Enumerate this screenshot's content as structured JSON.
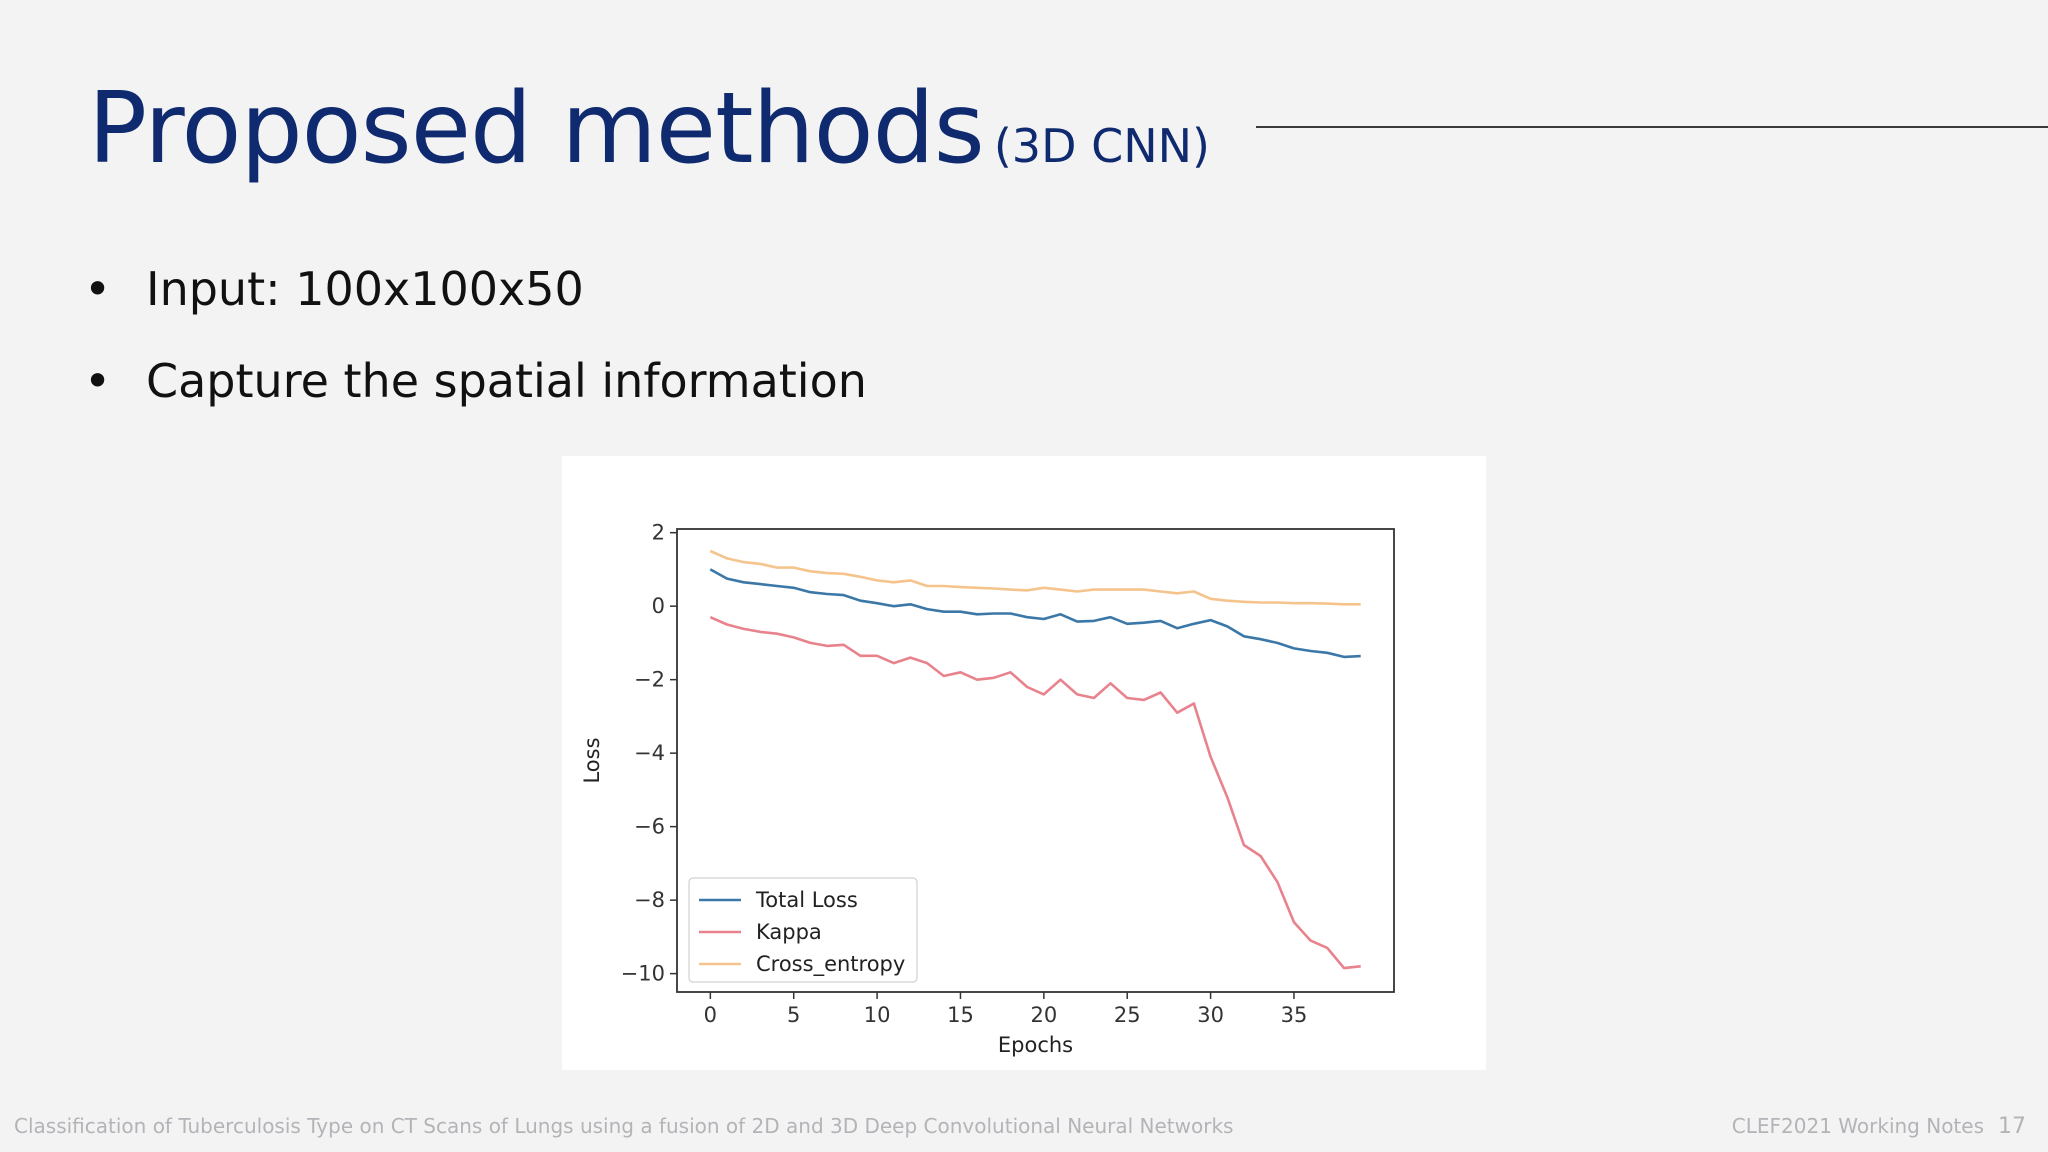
{
  "slide": {
    "title": "Proposed methods",
    "title_suffix": "(3D CNN)",
    "bullets": [
      {
        "marker": "•",
        "text": "Input: 100x100x50"
      },
      {
        "marker": "•",
        "text": "Capture the spatial information"
      }
    ],
    "footer_left": "Classification of Tuberculosis Type on CT Scans of Lungs using a fusion of 2D and 3D Deep Convolutional Neural Networks",
    "footer_right": "CLEF2021 Working Notes",
    "page_number": "17"
  },
  "chart_data": {
    "type": "line",
    "title": "",
    "xlabel": "Epochs",
    "ylabel": "Loss",
    "xlim": [
      -2,
      41
    ],
    "ylim": [
      -10.5,
      2.1
    ],
    "xticks": [
      0,
      5,
      10,
      15,
      20,
      25,
      30,
      35
    ],
    "yticks": [
      2,
      0,
      -2,
      -4,
      -6,
      -8,
      -10
    ],
    "ytick_labels": [
      "2",
      "0",
      "−2",
      "−4",
      "−6",
      "−8",
      "−10"
    ],
    "legend_position": "lower-left",
    "x": [
      0,
      1,
      2,
      3,
      4,
      5,
      6,
      7,
      8,
      9,
      10,
      11,
      12,
      13,
      14,
      15,
      16,
      17,
      18,
      19,
      20,
      21,
      22,
      23,
      24,
      25,
      26,
      27,
      28,
      29,
      30,
      31,
      32,
      33,
      34,
      35,
      36,
      37,
      38,
      39
    ],
    "series": [
      {
        "name": "Total Loss",
        "color": "#3b78a8",
        "values": [
          1.0,
          0.75,
          0.65,
          0.6,
          0.55,
          0.5,
          0.38,
          0.33,
          0.3,
          0.15,
          0.08,
          0.0,
          0.05,
          -0.08,
          -0.15,
          -0.15,
          -0.22,
          -0.2,
          -0.2,
          -0.3,
          -0.35,
          -0.22,
          -0.42,
          -0.4,
          -0.3,
          -0.48,
          -0.45,
          -0.4,
          -0.6,
          -0.48,
          -0.38,
          -0.55,
          -0.82,
          -0.9,
          -1.0,
          -1.15,
          -1.22,
          -1.27,
          -1.38,
          -1.36
        ]
      },
      {
        "name": "Kappa",
        "color": "#e8828c",
        "values": [
          -0.3,
          -0.5,
          -0.62,
          -0.7,
          -0.75,
          -0.85,
          -1.0,
          -1.08,
          -1.05,
          -1.35,
          -1.35,
          -1.55,
          -1.4,
          -1.55,
          -1.9,
          -1.8,
          -2.0,
          -1.95,
          -1.8,
          -2.2,
          -2.4,
          -2.0,
          -2.4,
          -2.5,
          -2.1,
          -2.5,
          -2.55,
          -2.35,
          -2.9,
          -2.65,
          -4.1,
          -5.2,
          -6.5,
          -6.8,
          -7.5,
          -8.6,
          -9.1,
          -9.3,
          -9.85,
          -9.8
        ]
      },
      {
        "name": "Cross_entropy",
        "color": "#f5c48c",
        "values": [
          1.5,
          1.3,
          1.2,
          1.15,
          1.05,
          1.05,
          0.95,
          0.9,
          0.88,
          0.8,
          0.7,
          0.65,
          0.7,
          0.55,
          0.55,
          0.52,
          0.5,
          0.48,
          0.45,
          0.43,
          0.5,
          0.45,
          0.4,
          0.45,
          0.45,
          0.45,
          0.45,
          0.4,
          0.35,
          0.4,
          0.2,
          0.15,
          0.12,
          0.1,
          0.1,
          0.08,
          0.08,
          0.07,
          0.05,
          0.05
        ]
      }
    ]
  }
}
